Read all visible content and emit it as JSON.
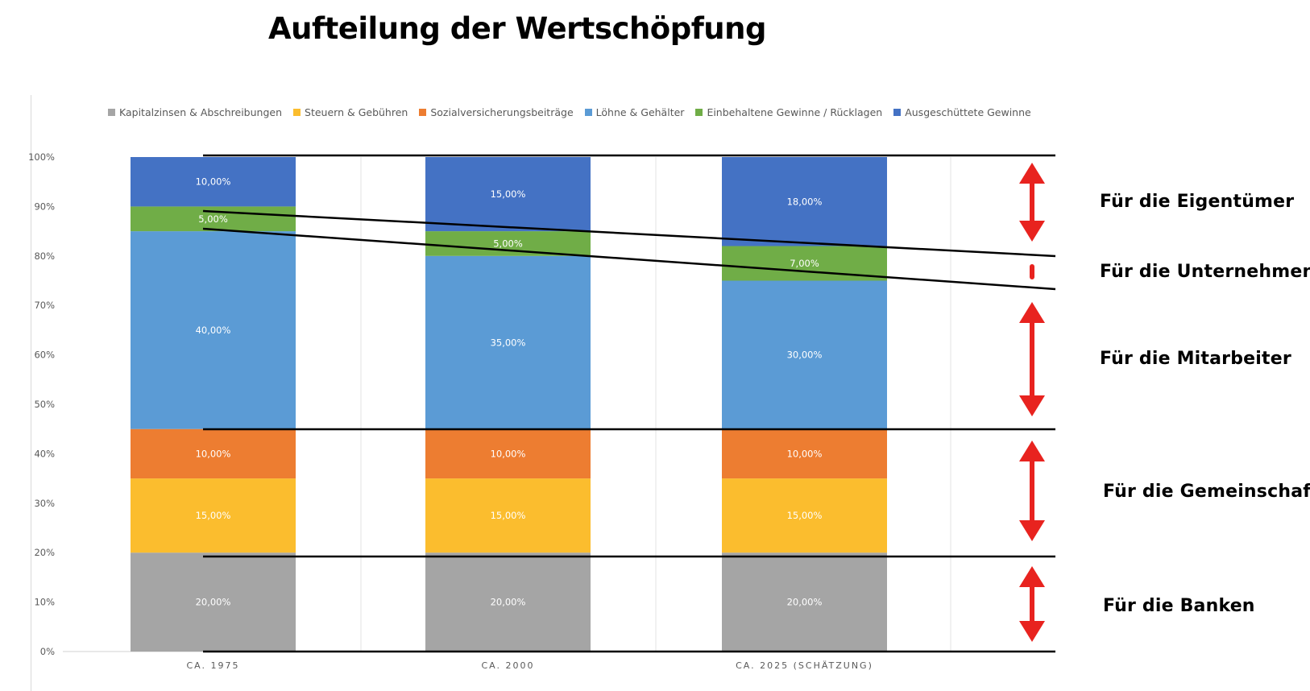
{
  "title": "Aufteilung der Wertschöpfung",
  "legend": [
    {
      "label": "Kapitalzinsen & Abschreibungen",
      "color": "#a5a5a5"
    },
    {
      "label": "Steuern & Gebühren",
      "color": "#fbbd2e"
    },
    {
      "label": "Sozialversicherungsbeiträge",
      "color": "#ed7d31"
    },
    {
      "label": "Löhne & Gehälter",
      "color": "#5b9bd5"
    },
    {
      "label": "Einbehaltene Gewinne / Rücklagen",
      "color": "#70ad47"
    },
    {
      "label": "Ausgeschüttete Gewinne",
      "color": "#4472c4"
    }
  ],
  "chart_data": {
    "type": "bar",
    "stacked": true,
    "categories": [
      "CA. 1975",
      "CA. 2000",
      "CA. 2025 (SCHÄTZUNG)"
    ],
    "series": [
      {
        "name": "Kapitalzinsen & Abschreibungen",
        "values": [
          20,
          20,
          20
        ],
        "labels": [
          "20,00%",
          "20,00%",
          "20,00%"
        ]
      },
      {
        "name": "Steuern & Gebühren",
        "values": [
          15,
          15,
          15
        ],
        "labels": [
          "15,00%",
          "15,00%",
          "15,00%"
        ]
      },
      {
        "name": "Sozialversicherungsbeiträge",
        "values": [
          10,
          10,
          10
        ],
        "labels": [
          "10,00%",
          "10,00%",
          "10,00%"
        ]
      },
      {
        "name": "Löhne & Gehälter",
        "values": [
          40,
          35,
          30
        ],
        "labels": [
          "40,00%",
          "35,00%",
          "30,00%"
        ]
      },
      {
        "name": "Einbehaltene Gewinne / Rücklagen",
        "values": [
          5,
          5,
          7
        ],
        "labels": [
          "5,00%",
          "5,00%",
          "7,00%"
        ]
      },
      {
        "name": "Ausgeschüttete Gewinne",
        "values": [
          10,
          15,
          18
        ],
        "labels": [
          "10,00%",
          "15,00%",
          "18,00%"
        ]
      }
    ],
    "yticks": [
      "0%",
      "10%",
      "20%",
      "30%",
      "40%",
      "50%",
      "60%",
      "70%",
      "80%",
      "90%",
      "100%"
    ],
    "ylim": [
      0,
      100
    ],
    "legend_position": "top",
    "grid": "vertical separators"
  },
  "groups": [
    {
      "label": "Für die Eigentümer"
    },
    {
      "label": "Für die Unternehmen"
    },
    {
      "label": "Für die Mitarbeiter"
    },
    {
      "label": "Für die Gemeinschaft"
    },
    {
      "label": "Für die Banken"
    }
  ],
  "colors": {
    "arrow": "#e8231f",
    "bar_label": "#ffffff",
    "axis_text": "#595959"
  }
}
